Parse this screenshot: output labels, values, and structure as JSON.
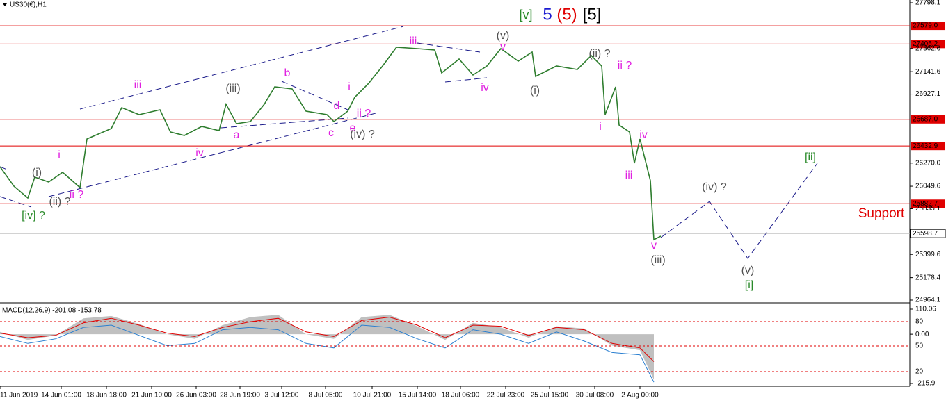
{
  "chart_data": [
    {
      "type": "line",
      "title": "US30(€),H1",
      "xlim": [
        0,
        654
      ],
      "xticks": [
        {
          "value": 0,
          "label": "11 Jun 2019"
        },
        {
          "value": 44,
          "label": "14 Jun 01:00"
        },
        {
          "value": 76.5,
          "label": "18 Jun 18:00"
        },
        {
          "value": 109,
          "label": "21 Jun 10:00"
        },
        {
          "value": 141,
          "label": "26 Jun 03:00"
        },
        {
          "value": 172.5,
          "label": "28 Jun 19:00"
        },
        {
          "value": 202.5,
          "label": "3 Jul 12:00"
        },
        {
          "value": 234,
          "label": "8 Jul 05:00"
        },
        {
          "value": 267.5,
          "label": "10 Jul 21:00"
        },
        {
          "value": 300,
          "label": "15 Jul 14:00"
        },
        {
          "value": 331,
          "label": "18 Jul 06:00"
        },
        {
          "value": 363.5,
          "label": "22 Jul 23:00"
        },
        {
          "value": 395,
          "label": "25 Jul 15:00"
        },
        {
          "value": 427.5,
          "label": "30 Jul 08:00"
        },
        {
          "value": 460,
          "label": "2 Aug 00:00"
        }
      ],
      "ylim": [
        24944.2,
        27824.6
      ],
      "yticks": [
        27798.1,
        27362.6,
        27141.6,
        26927.1,
        {
          "value": 26270,
          "label": "26270.0"
        },
        26049.6,
        25835.1,
        25399.6,
        25178.4,
        24964.1
      ],
      "levels": [
        {
          "value": 27579,
          "label": "27579.0",
          "color": "#e00000"
        },
        {
          "value": 27405.2,
          "label": "27405.2",
          "color": "#e00000"
        },
        {
          "value": 26687,
          "label": "26687.0",
          "color": "#e00000"
        },
        {
          "value": 26432.9,
          "label": "26432.9",
          "color": "#e00000"
        },
        {
          "value": 25882.7,
          "label": "25882.7",
          "color": "#e00000"
        },
        {
          "value": 25598.7,
          "label": "25598.7",
          "color": "#b8b8b8"
        }
      ],
      "x": [
        0,
        10,
        20,
        25,
        35,
        45,
        57.5,
        62.5,
        80,
        87.5,
        100,
        115,
        122.5,
        132.5,
        145,
        157.5,
        162.5,
        170,
        180,
        190,
        197.5,
        210,
        220,
        235,
        240,
        250,
        255,
        265,
        275,
        285,
        300,
        312.5,
        317.5,
        330,
        340,
        350,
        360,
        372.5,
        382.5,
        385,
        400,
        415,
        425,
        432.5,
        435,
        442.5,
        445,
        452.5,
        456,
        460,
        467.5,
        470,
        475
      ],
      "series": [
        {
          "color": "#2e7d2e",
          "values": [
            26235.6,
            26050.2,
            25937.6,
            26136.2,
            26089.9,
            26182.6,
            26036.9,
            26500.4,
            26599.7,
            26798.4,
            26732.1,
            26778.5,
            26566.6,
            26533.5,
            26619.6,
            26579.9,
            26831.5,
            26646.1,
            26665.9,
            26831.5,
            26997,
            26977.1,
            26765.2,
            26732.1,
            26665.9,
            26765.2,
            26897.7,
            27030.1,
            27195.6,
            27374.4,
            27361.1,
            27347.9,
            27129.4,
            27262,
            27109.5,
            27195.6,
            27361.1,
            27242,
            27328,
            27096.3,
            27195.6,
            27162.5,
            27294.9,
            27195.6,
            26732.1,
            26997,
            26632.8,
            26566.6,
            26268.7,
            26500.4,
            26103.1,
            25540.4,
            25573.5
          ]
        }
      ],
      "header": [
        {
          "text": "[v]",
          "color": "#2a8a2a"
        },
        {
          "text": "5",
          "color": "#1a1ad0"
        },
        {
          "text": "(5)",
          "color": "#e00000"
        },
        {
          "text": "[5]",
          "color": "#000000"
        }
      ],
      "support": {
        "text": "Support",
        "color": "#e00000"
      },
      "annotations": [
        {
          "text": "(i)",
          "color": "#505050"
        },
        {
          "text": "(ii) ?",
          "color": "#505050"
        },
        {
          "text": "[iv] ?",
          "color": "#2a8a2a"
        },
        {
          "text": "i",
          "color": "#e020e0"
        },
        {
          "text": "ii ?",
          "color": "#e020e0"
        },
        {
          "text": "iii",
          "color": "#e020e0"
        },
        {
          "text": "iv",
          "color": "#e020e0"
        },
        {
          "text": "(iii)",
          "color": "#505050"
        },
        {
          "text": "a",
          "color": "#e020e0"
        },
        {
          "text": "b",
          "color": "#e020e0"
        },
        {
          "text": "c",
          "color": "#e020e0"
        },
        {
          "text": "d",
          "color": "#e020e0"
        },
        {
          "text": "e",
          "color": "#e020e0"
        },
        {
          "text": "i",
          "color": "#e020e0"
        },
        {
          "text": "ii ?",
          "color": "#e020e0"
        },
        {
          "text": "(iv) ?",
          "color": "#505050"
        },
        {
          "text": "iii",
          "color": "#e020e0"
        },
        {
          "text": "(v)",
          "color": "#505050"
        },
        {
          "text": "v",
          "color": "#e020e0"
        },
        {
          "text": "iv",
          "color": "#e020e0"
        },
        {
          "text": "(i)",
          "color": "#505050"
        },
        {
          "text": "(ii) ?",
          "color": "#505050"
        },
        {
          "text": "ii ?",
          "color": "#e020e0"
        },
        {
          "text": "i",
          "color": "#e020e0"
        },
        {
          "text": "iv",
          "color": "#e020e0"
        },
        {
          "text": "iii",
          "color": "#e020e0"
        },
        {
          "text": "v",
          "color": "#e020e0"
        },
        {
          "text": "(iii)",
          "color": "#505050"
        },
        {
          "text": "(iv) ?",
          "color": "#505050"
        },
        {
          "text": "(v)",
          "color": "#505050"
        },
        {
          "text": "[i]",
          "color": "#2a8a2a"
        },
        {
          "text": "[ii]",
          "color": "#2a8a2a"
        }
      ]
    },
    {
      "type": "line",
      "title": "MACD(12,26,9) -201.08 -153.78",
      "xlim": [
        0,
        654
      ],
      "ylim": [
        -228.1,
        131.4
      ],
      "yticks": [
        110.06,
        {
          "value": 0,
          "label": "0.00"
        },
        -215.9
      ],
      "level_labels": [
        "80",
        "50",
        "20"
      ],
      "x": [
        0,
        20,
        40,
        60,
        80,
        100,
        120,
        140,
        160,
        180,
        200,
        220,
        240,
        260,
        280,
        300,
        320,
        340,
        360,
        380,
        400,
        420,
        440,
        460,
        470
      ],
      "series": [
        {
          "color": "#c0c0c0",
          "fill": true,
          "values": [
            10,
            -25,
            -5,
            70,
            80,
            45,
            0,
            -20,
            40,
            75,
            85,
            0,
            -20,
            75,
            85,
            35,
            -25,
            50,
            30,
            -15,
            35,
            25,
            -50,
            -70,
            -200
          ]
        },
        {
          "color": "#e00000",
          "values": [
            5,
            -15,
            -5,
            50,
            70,
            40,
            5,
            -10,
            30,
            55,
            70,
            10,
            -10,
            60,
            75,
            40,
            -15,
            40,
            35,
            -5,
            30,
            20,
            -40,
            -60,
            -120
          ]
        },
        {
          "color": "#2a7fd0",
          "values": [
            -10,
            -40,
            -20,
            30,
            40,
            -5,
            -50,
            -40,
            20,
            30,
            20,
            -40,
            -60,
            40,
            30,
            -20,
            -60,
            20,
            0,
            -40,
            10,
            -30,
            -80,
            -90,
            -210
          ]
        }
      ]
    }
  ]
}
